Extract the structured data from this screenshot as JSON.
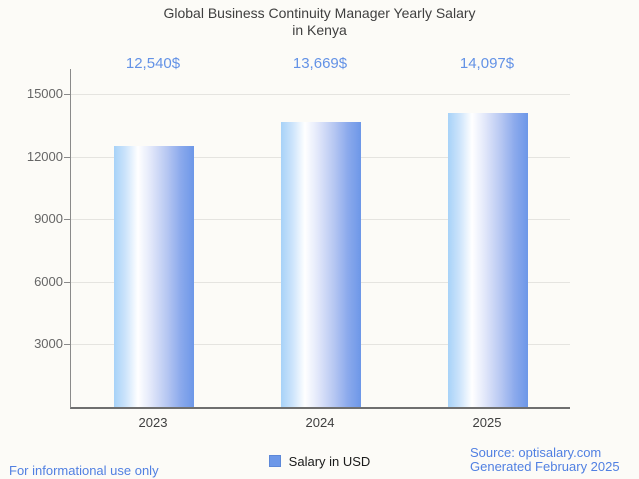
{
  "title": {
    "line1": "Global Business Continuity Manager Yearly Salary",
    "line2": "in Kenya"
  },
  "chart_data": {
    "type": "bar",
    "title": "Global Business Continuity Manager Yearly Salary in Kenya",
    "categories": [
      "2023",
      "2024",
      "2025"
    ],
    "series": [
      {
        "name": "Salary in USD",
        "values": [
          12540,
          13669,
          14097
        ]
      }
    ],
    "value_labels": [
      "12,540$",
      "13,669$",
      "14,097$"
    ],
    "y_ticks": [
      3000,
      6000,
      9000,
      12000,
      15000
    ],
    "ylim": [
      0,
      16200
    ],
    "xlabel": "",
    "ylabel": "",
    "grid": true,
    "legend_position": "bottom",
    "bar_gradient": {
      "left": "#a7d2f8",
      "mid": "#ffffff",
      "right": "#6d97e8"
    }
  },
  "legend": {
    "label": "Salary in USD",
    "swatch_color": "#6d98e8"
  },
  "footer": {
    "left": "For informational use only",
    "source": "Source: optisalary.com",
    "generated": "Generated February 2025"
  },
  "colors": {
    "background": "#fcfbf7",
    "title_text": "#3f3f3f",
    "value_label": "#6392e6",
    "footer_link": "#5180e2",
    "axis": "#8a8a8a",
    "gridline": "#e5e4e0"
  }
}
